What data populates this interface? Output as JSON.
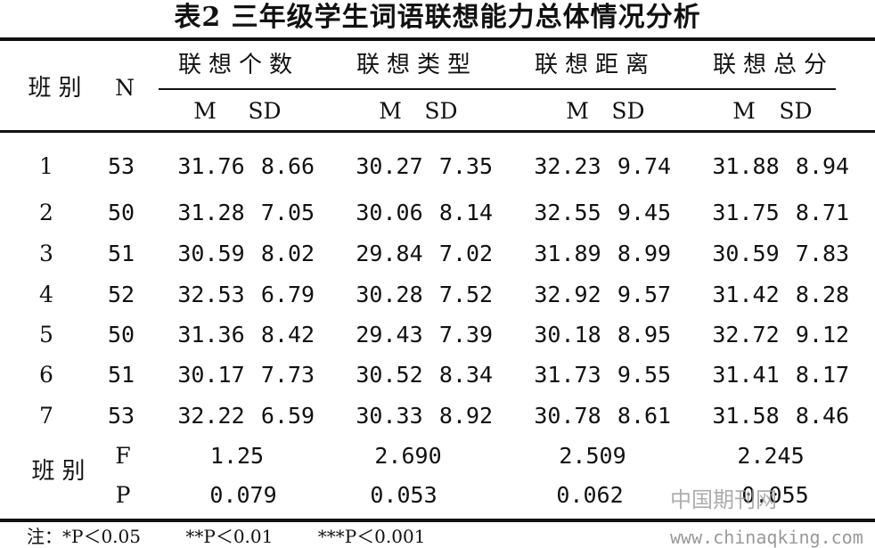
{
  "title": "表2 三年级学生词语联想能力总体情况分析",
  "header": {
    "col_class": "班别",
    "col_n": "N",
    "groups": [
      "联想个数",
      "联想类型",
      "联想距离",
      "联想总分"
    ],
    "m": "M",
    "sd": "SD"
  },
  "rows": [
    [
      "1",
      "53",
      "31.76",
      "8.66",
      "30.27",
      "7.35",
      "32.23",
      "9.74",
      "31.88",
      "8.94"
    ],
    [
      "2",
      "50",
      "31.28",
      "7.05",
      "30.06",
      "8.14",
      "32.55",
      "9.45",
      "31.75",
      "8.71"
    ],
    [
      "3",
      "51",
      "30.59",
      "8.02",
      "29.84",
      "7.02",
      "31.89",
      "8.99",
      "30.59",
      "7.83"
    ],
    [
      "4",
      "52",
      "32.53",
      "6.79",
      "30.28",
      "7.52",
      "32.92",
      "9.57",
      "31.42",
      "8.28"
    ],
    [
      "5",
      "50",
      "31.36",
      "8.42",
      "29.43",
      "7.39",
      "30.18",
      "8.95",
      "32.72",
      "9.12"
    ],
    [
      "6",
      "51",
      "30.17",
      "7.73",
      "30.52",
      "8.34",
      "31.73",
      "9.55",
      "31.41",
      "8.17"
    ],
    [
      "7",
      "53",
      "32.22",
      "6.59",
      "30.33",
      "8.92",
      "30.78",
      "8.61",
      "31.58",
      "8.46"
    ]
  ],
  "stats": {
    "label": "班别",
    "f_label": "F",
    "p_label": "P",
    "f": [
      "1.25",
      "2.690",
      "2.509",
      "2.245"
    ],
    "p": [
      "0.079",
      "0.053",
      "0.062",
      "0.055"
    ]
  },
  "notes": [
    "注：*P＜0.05",
    "**P＜0.01",
    "***P＜0.001"
  ],
  "watermark": {
    "cn": "中国期刊网",
    "url": "www.chinaqking.com"
  }
}
